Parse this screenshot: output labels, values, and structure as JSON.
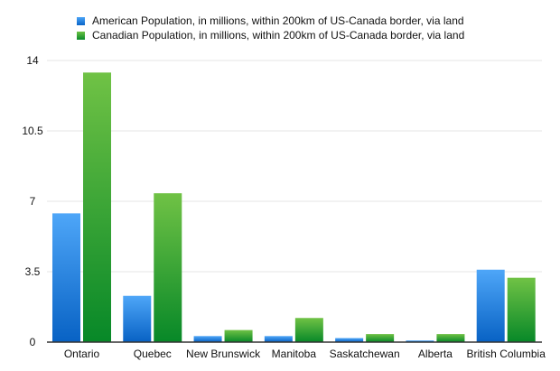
{
  "chart_data": {
    "type": "bar",
    "title": "",
    "xlabel": "",
    "ylabel": "",
    "categories": [
      "Ontario",
      "Quebec",
      "New Brunswick",
      "Manitoba",
      "Saskatchewan",
      "Alberta",
      "British Columbia"
    ],
    "series": [
      {
        "name": "American Population, in millions, within 200km of US-Canada border, via land",
        "color": "#2a86e6",
        "values": [
          6.4,
          2.3,
          0.3,
          0.3,
          0.2,
          0.08,
          3.6
        ]
      },
      {
        "name": "Canadian Population, in millions, within 200km of US-Canada border, via land",
        "color": "#3aa53a",
        "values": [
          13.4,
          7.4,
          0.6,
          1.2,
          0.4,
          0.4,
          3.2
        ]
      }
    ],
    "yticks": [
      "0",
      "3.5",
      "7",
      "10.5",
      "14"
    ],
    "ylim": [
      0,
      14
    ],
    "grid": true,
    "legend": "top"
  }
}
